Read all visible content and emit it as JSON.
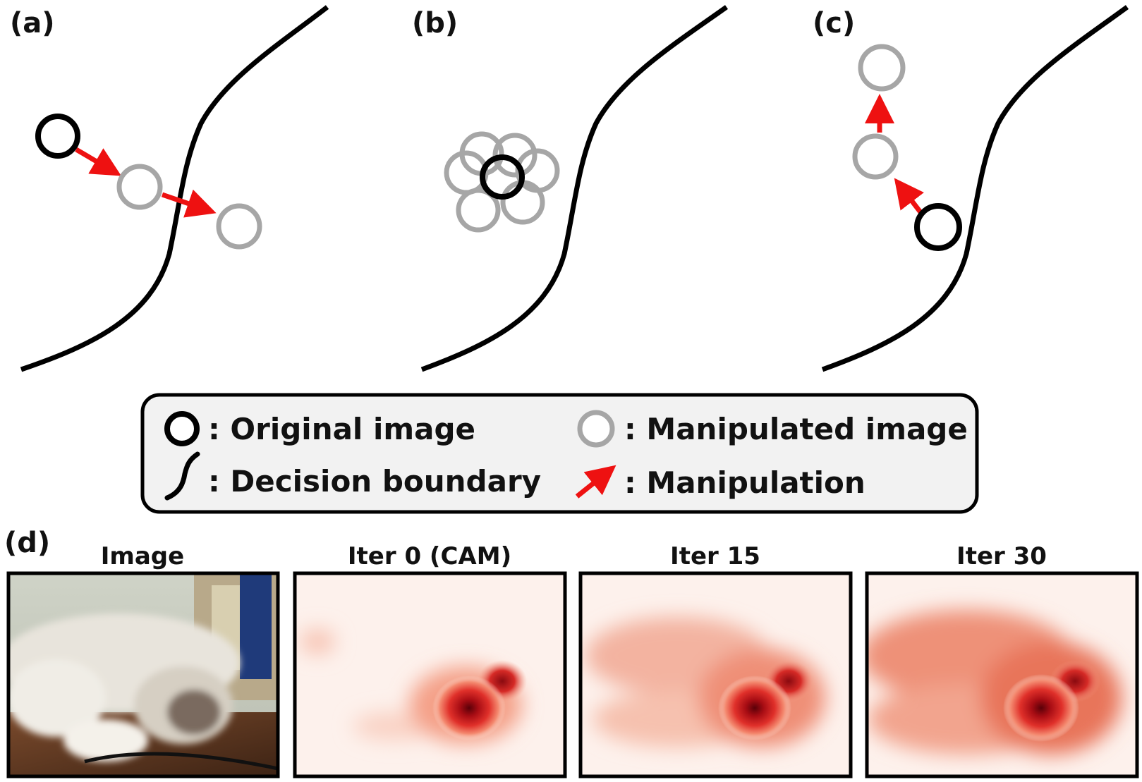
{
  "panels": [
    {
      "label": "(a)"
    },
    {
      "label": "(b)"
    },
    {
      "label": "(c)"
    }
  ],
  "legend": {
    "original_image": ": Original image",
    "manipulated_image": ": Manipulated image",
    "decision_boundary": ": Decision boundary",
    "manipulation": ": Manipulation"
  },
  "panel_d": {
    "label": "(d)",
    "titles": [
      "Image",
      "Iter 0 (CAM)",
      "Iter 15",
      "Iter 30"
    ]
  },
  "colors": {
    "original": "#000000",
    "manipulated": "#a6a6a6",
    "arrow": "#ee1111",
    "heatmap": "#c8141e"
  }
}
